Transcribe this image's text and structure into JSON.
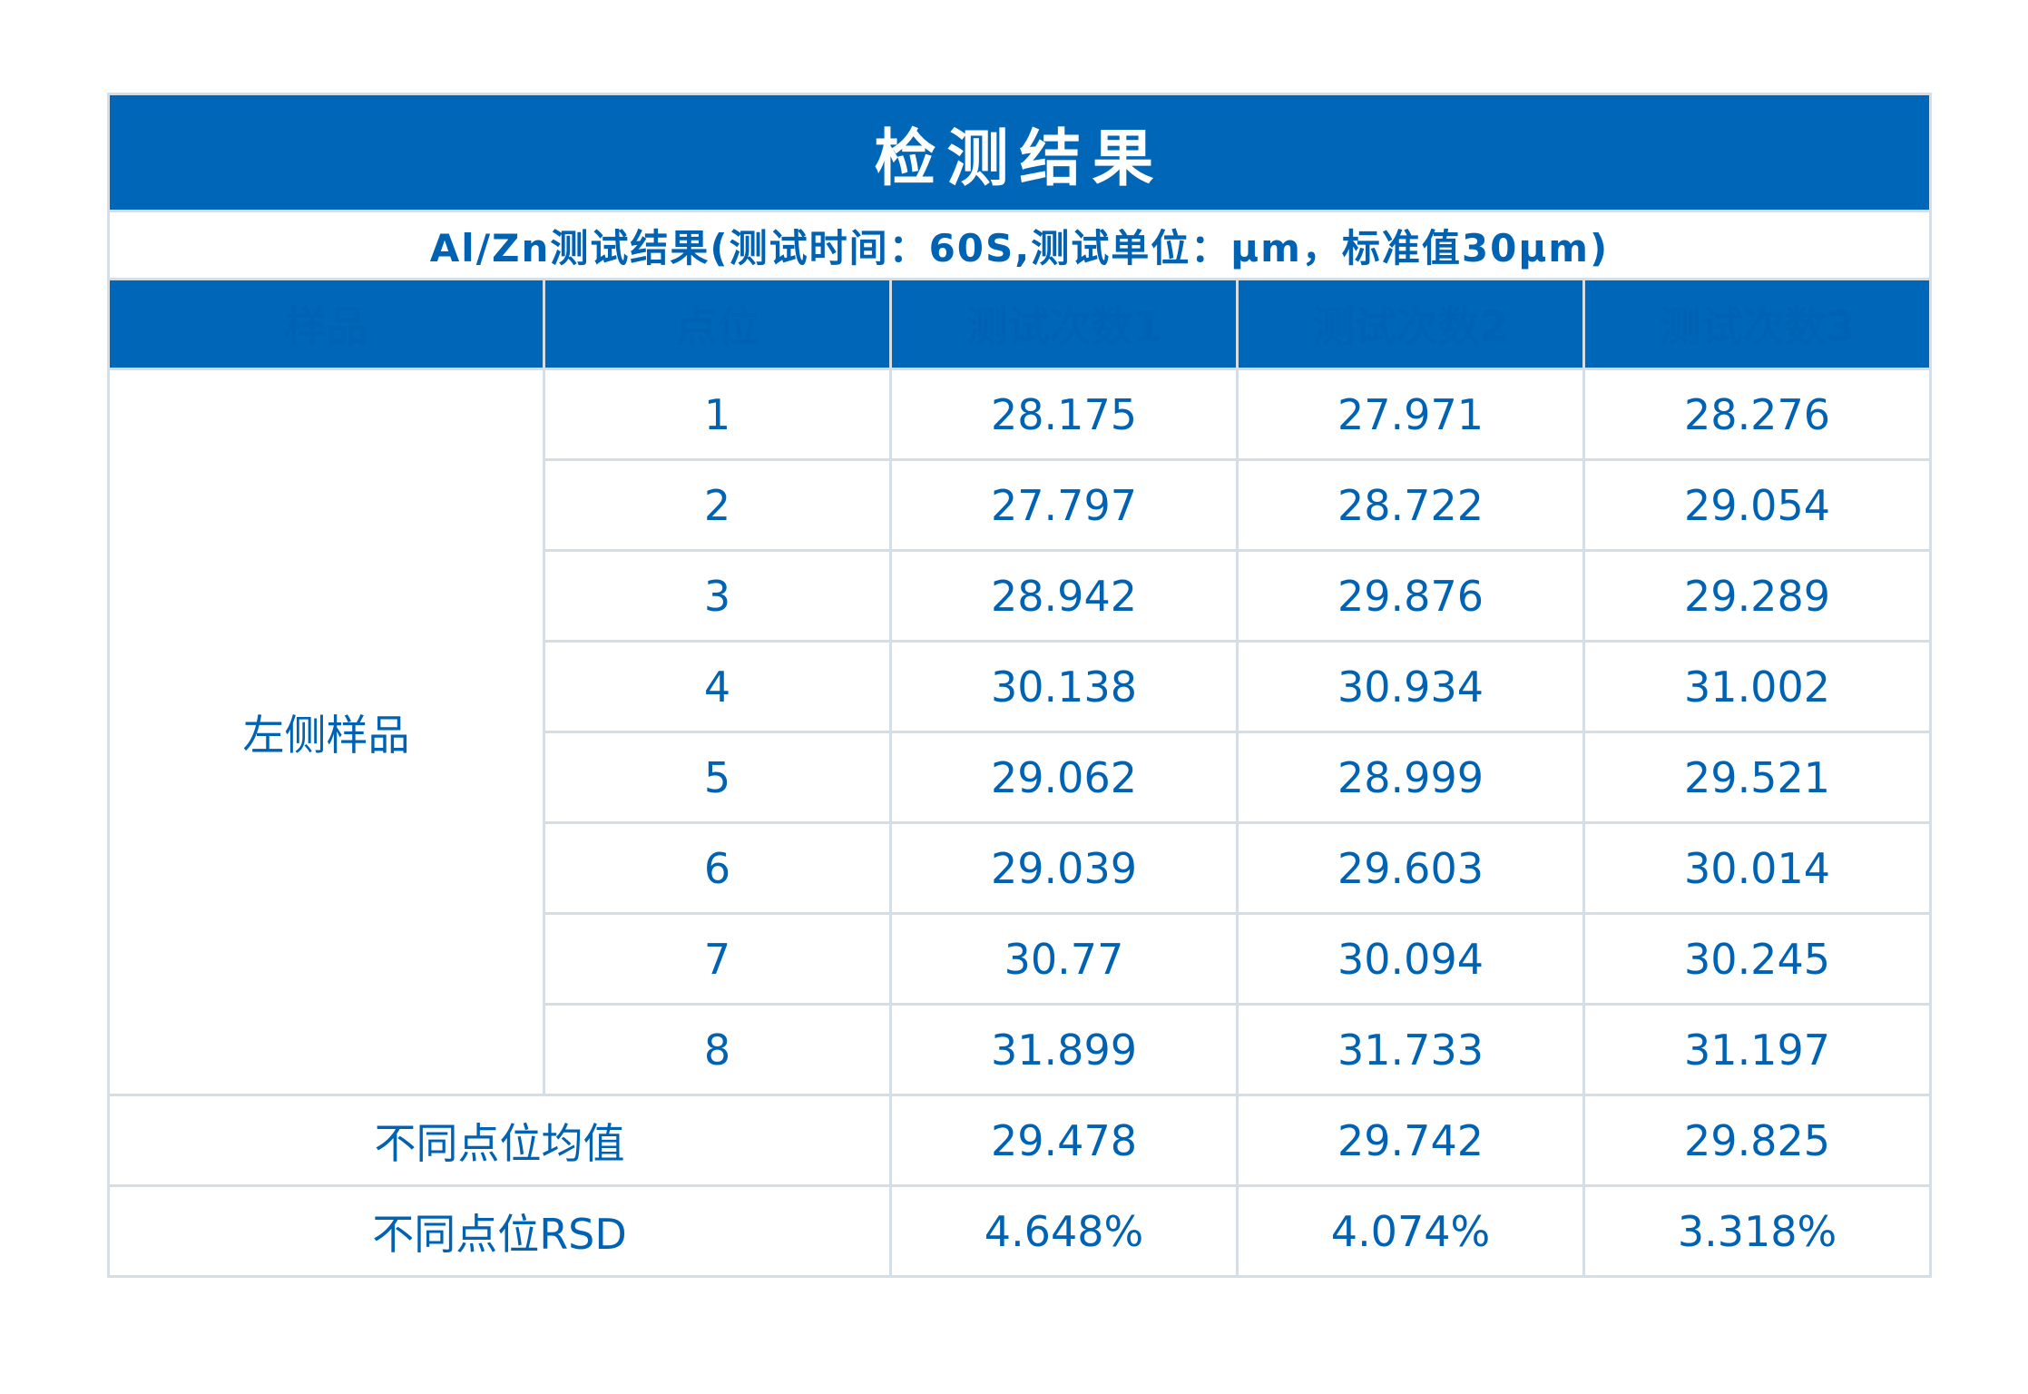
{
  "title": "检测结果",
  "subtitle": "Al/Zn测试结果(测试时间：60S,测试单位：μm，标准值30μm)",
  "headers": [
    "样品",
    "点位",
    "测试次数1",
    "测试次数2",
    "测试次数3"
  ],
  "sample_name": "左侧样品",
  "rows": [
    {
      "point": "1",
      "t1": "28.175",
      "t2": "27.971",
      "t3": "28.276"
    },
    {
      "point": "2",
      "t1": "27.797",
      "t2": "28.722",
      "t3": "29.054"
    },
    {
      "point": "3",
      "t1": "28.942",
      "t2": "29.876",
      "t3": "29.289"
    },
    {
      "point": "4",
      "t1": "30.138",
      "t2": "30.934",
      "t3": "31.002"
    },
    {
      "point": "5",
      "t1": "29.062",
      "t2": "28.999",
      "t3": "29.521"
    },
    {
      "point": "6",
      "t1": "29.039",
      "t2": "29.603",
      "t3": "30.014"
    },
    {
      "point": "7",
      "t1": "30.77",
      "t2": "30.094",
      "t3": "30.245"
    },
    {
      "point": "8",
      "t1": "31.899",
      "t2": "31.733",
      "t3": "31.197"
    }
  ],
  "mean": {
    "label": "不同点位均值",
    "t1": "29.478",
    "t2": "29.742",
    "t3": "29.825"
  },
  "rsd": {
    "label": "不同点位RSD",
    "t1": "4.648%",
    "t2": "4.074%",
    "t3": "3.318%"
  },
  "colors": {
    "header_bg": "#0067b8",
    "text": "#0062b3",
    "border": "#d5dde6"
  }
}
